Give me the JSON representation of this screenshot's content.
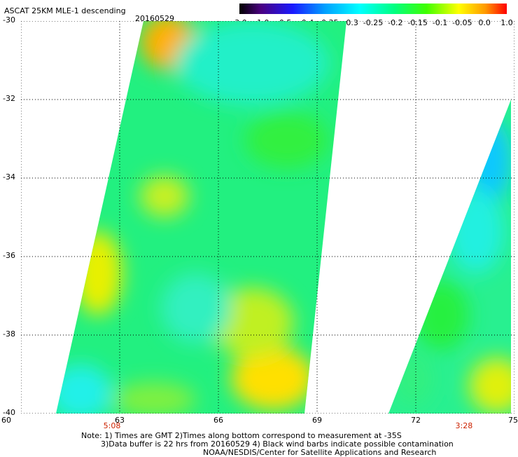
{
  "header": {
    "title": "ASCAT 25KM MLE-1 descending",
    "date": "20160529"
  },
  "colorbar": {
    "labels": [
      "-3.0",
      "-1.0",
      "-0.5",
      "-0.4",
      "-0.35",
      "-0.3",
      "-0.25",
      "-0.2",
      "-0.15",
      "-0.1",
      "-0.05",
      "0.0",
      "1.0"
    ]
  },
  "map": {
    "y_ticks": [
      {
        "value": -30,
        "label": "-30"
      },
      {
        "value": -32,
        "label": "-32"
      },
      {
        "value": -34,
        "label": "-34"
      },
      {
        "value": -36,
        "label": "-36"
      },
      {
        "value": -38,
        "label": "-38"
      },
      {
        "value": -40,
        "label": "-40"
      }
    ],
    "x_ticks": [
      {
        "value": 60,
        "label": "60"
      },
      {
        "value": 63,
        "label": "63"
      },
      {
        "value": 66,
        "label": "66"
      },
      {
        "value": 69,
        "label": "69"
      },
      {
        "value": 72,
        "label": "72"
      },
      {
        "value": 75,
        "label": "75"
      }
    ],
    "x_range": [
      60,
      75
    ],
    "y_range": [
      -40,
      -30
    ],
    "grid": "dotted",
    "pass_times": [
      {
        "lon": 63,
        "label": "5:08"
      },
      {
        "lon": 73.7,
        "label": "3:28"
      }
    ]
  },
  "notes": {
    "line1": "Note: 1) Times are GMT 2)Times along bottom correspond to measurement at -35S",
    "line2": "3)Data buffer is 22 hrs from 20160529 4) Black wind barbs indicate possible contamination",
    "line3": "NOAA/NESDIS/Center for Satellite Applications and Research"
  }
}
